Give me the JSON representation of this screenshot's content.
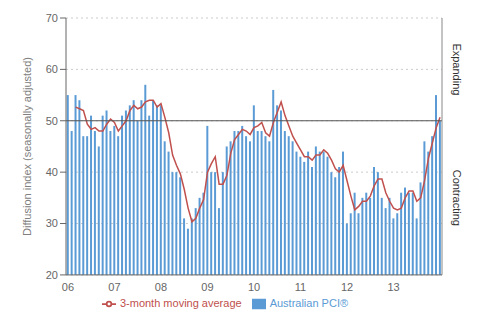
{
  "chart_data": {
    "type": "bar",
    "ylabel": "Diffusion index (seasonally adjusted)",
    "categories": [
      "06",
      null,
      null,
      null,
      null,
      null,
      null,
      null,
      null,
      null,
      null,
      null,
      "07",
      null,
      null,
      null,
      null,
      null,
      null,
      null,
      null,
      null,
      null,
      null,
      "08",
      null,
      null,
      null,
      null,
      null,
      null,
      null,
      null,
      null,
      null,
      null,
      "09",
      null,
      null,
      null,
      null,
      null,
      null,
      null,
      null,
      null,
      null,
      null,
      "10",
      null,
      null,
      null,
      null,
      null,
      null,
      null,
      null,
      null,
      null,
      null,
      "11",
      null,
      null,
      null,
      null,
      null,
      null,
      null,
      null,
      null,
      null,
      null,
      "12",
      null,
      null,
      null,
      null,
      null,
      null,
      null,
      null,
      null,
      null,
      null,
      "13",
      null,
      null,
      null,
      null,
      null,
      null,
      null,
      null,
      null,
      null,
      null,
      null
    ],
    "series": [
      {
        "name": "Australian PCI®",
        "type": "bar",
        "color": "#5B9BD5",
        "values": [
          55,
          48,
          55,
          54,
          47,
          47,
          51,
          48,
          45,
          51,
          52,
          48,
          49,
          47,
          51,
          52,
          53,
          54,
          50,
          54,
          57,
          51,
          54,
          53,
          53,
          46,
          44,
          40,
          40,
          39,
          31,
          29,
          31,
          33,
          35,
          36,
          49,
          40,
          40,
          33,
          40,
          45,
          46,
          48,
          48,
          49,
          47,
          46,
          53,
          48,
          48,
          47,
          46,
          56,
          53,
          52,
          48,
          47,
          46,
          44,
          43,
          42,
          44,
          41,
          45,
          44,
          44,
          43,
          40,
          39,
          41,
          44,
          30,
          32,
          36,
          32,
          35,
          36,
          35,
          41,
          40,
          35,
          33,
          35,
          31,
          32,
          36,
          37,
          36,
          36,
          31,
          38,
          46,
          44,
          47,
          55,
          50
        ]
      },
      {
        "name": "3-month moving average",
        "type": "line",
        "color": "#C0504D",
        "values": [
          null,
          null,
          52.6667,
          52.3333,
          52,
          49.3333,
          48.3333,
          48.6667,
          48,
          48,
          49.3333,
          50.3333,
          49.6667,
          48,
          49,
          50,
          52,
          53,
          52.3333,
          52.6667,
          53.6667,
          54,
          54,
          52.6667,
          53.3333,
          50.6667,
          47.6667,
          43.3333,
          41.3333,
          39.6667,
          36.6667,
          33,
          30.3333,
          31,
          33,
          34.6667,
          40,
          41.6667,
          43,
          37.6667,
          37.6667,
          39.3333,
          43.6667,
          46.3333,
          47.3333,
          48.3333,
          48,
          47.3333,
          48.6667,
          49,
          49.6667,
          47.6667,
          47,
          49.6667,
          51.6667,
          53.6667,
          51,
          49,
          47,
          45.6667,
          44.3333,
          43,
          43,
          42.3333,
          43.3333,
          43.3333,
          44.3333,
          43.6667,
          42.3333,
          40.6667,
          40,
          41.3333,
          38.3333,
          35.3333,
          32.6667,
          33.3333,
          34.3333,
          34.3333,
          35.3333,
          37.3333,
          38.6667,
          38.6667,
          36,
          34.3333,
          33,
          32.6667,
          33,
          35,
          36.3333,
          36.3333,
          34.3333,
          35,
          38.3333,
          42.6667,
          45.6667,
          48.6667,
          50.6667
        ]
      }
    ],
    "threshold": 50,
    "annotations": [
      "Expanding",
      "Contracting"
    ],
    "ylim": [
      20,
      70
    ],
    "yticks": [
      20,
      30,
      40,
      50,
      60,
      70
    ],
    "grid": true,
    "legend": "bottom"
  }
}
